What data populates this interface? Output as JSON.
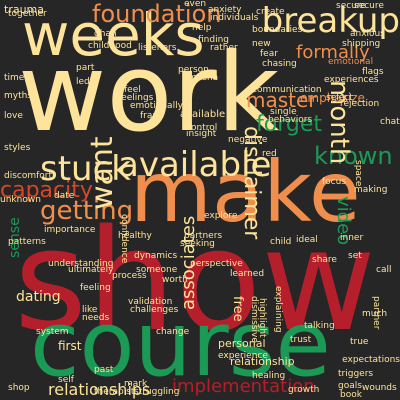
{
  "palette": {
    "background": "#262626",
    "cream": "#fde49a",
    "orange": "#f08f4d",
    "red": "#b51f2b",
    "green": "#1b9a56",
    "dark_orange": "#d2482b"
  },
  "words": [
    {
      "text": "show",
      "color": "red"
    },
    {
      "text": "work",
      "color": "cream"
    },
    {
      "text": "course",
      "color": "green"
    },
    {
      "text": "make",
      "color": "orange"
    },
    {
      "text": "weeks",
      "color": "cream"
    },
    {
      "text": "breakup",
      "color": "cream"
    },
    {
      "text": "foundation",
      "color": "orange"
    },
    {
      "text": "available",
      "color": "cream"
    },
    {
      "text": "stuck",
      "color": "cream"
    },
    {
      "text": "getting",
      "color": "orange"
    },
    {
      "text": "capacity",
      "color": "dark_orange"
    },
    {
      "text": "known",
      "color": "green"
    },
    {
      "text": "month",
      "color": "cream"
    },
    {
      "text": "want",
      "color": "cream"
    },
    {
      "text": "forget",
      "color": "green"
    },
    {
      "text": "master",
      "color": "orange"
    },
    {
      "text": "disclaimer",
      "color": "cream"
    },
    {
      "text": "formally",
      "color": "orange"
    },
    {
      "text": "video",
      "color": "green"
    },
    {
      "text": "implementation",
      "color": "red"
    },
    {
      "text": "relationships",
      "color": "cream"
    },
    {
      "text": "associates",
      "color": "cream"
    },
    {
      "text": "relationship",
      "color": "cream"
    },
    {
      "text": "dating",
      "color": "cream"
    },
    {
      "text": "sense",
      "color": "green"
    },
    {
      "text": "free",
      "color": "cream"
    },
    {
      "text": "first",
      "color": "cream"
    },
    {
      "text": "personal",
      "color": "cream"
    },
    {
      "text": "emphasize",
      "color": "orange"
    },
    {
      "text": "available",
      "color": "cream"
    },
    {
      "text": "trauma",
      "color": "cream"
    },
    {
      "text": "together",
      "color": "cream"
    },
    {
      "text": "childhood",
      "color": "cream"
    },
    {
      "text": "listeners",
      "color": "cream"
    },
    {
      "text": "rather",
      "color": "cream"
    },
    {
      "text": "boundaries",
      "color": "cream"
    },
    {
      "text": "new",
      "color": "cream"
    },
    {
      "text": "shipping",
      "color": "cream"
    },
    {
      "text": "anxious",
      "color": "cream"
    },
    {
      "text": "anxiety",
      "color": "cream"
    },
    {
      "text": "individuals",
      "color": "cream"
    },
    {
      "text": "secure",
      "color": "cream"
    },
    {
      "text": "emotional",
      "color": "orange"
    },
    {
      "text": "flags",
      "color": "cream"
    },
    {
      "text": "communication",
      "color": "cream"
    },
    {
      "text": "experiences",
      "color": "cream"
    },
    {
      "text": "select",
      "color": "cream"
    },
    {
      "text": "rejection",
      "color": "cream"
    },
    {
      "text": "feel",
      "color": "cream"
    },
    {
      "text": "feelings",
      "color": "cream"
    },
    {
      "text": "emotionally",
      "color": "cream"
    },
    {
      "text": "frank",
      "color": "cream"
    },
    {
      "text": "control",
      "color": "cream"
    },
    {
      "text": "insight",
      "color": "cream"
    },
    {
      "text": "single",
      "color": "cream"
    },
    {
      "text": "behaviors",
      "color": "cream"
    },
    {
      "text": "negative",
      "color": "cream"
    },
    {
      "text": "styles",
      "color": "cream"
    },
    {
      "text": "discomfort",
      "color": "cream"
    },
    {
      "text": "unknown",
      "color": "cream"
    },
    {
      "text": "date",
      "color": "cream"
    },
    {
      "text": "importance",
      "color": "cream"
    },
    {
      "text": "dynamics",
      "color": "cream"
    },
    {
      "text": "seeking",
      "color": "cream"
    },
    {
      "text": "partners",
      "color": "cream"
    },
    {
      "text": "explore",
      "color": "cream"
    },
    {
      "text": "understanding",
      "color": "cream"
    },
    {
      "text": "ultimately",
      "color": "cream"
    },
    {
      "text": "feeling",
      "color": "cream"
    },
    {
      "text": "validation",
      "color": "cream"
    },
    {
      "text": "challenges",
      "color": "cream"
    },
    {
      "text": "experience",
      "color": "cream"
    },
    {
      "text": "healing",
      "color": "cream"
    },
    {
      "text": "growth",
      "color": "cream"
    },
    {
      "text": "triggers",
      "color": "cream"
    },
    {
      "text": "expectations",
      "color": "cream"
    },
    {
      "text": "struggling",
      "color": "cream"
    },
    {
      "text": "therapist",
      "color": "cream"
    },
    {
      "text": "shop",
      "color": "cream"
    },
    {
      "text": "self",
      "color": "cream"
    },
    {
      "text": "past",
      "color": "cream"
    },
    {
      "text": "mark",
      "color": "cream"
    },
    {
      "text": "book",
      "color": "cream"
    },
    {
      "text": "wounds",
      "color": "cream"
    },
    {
      "text": "goals",
      "color": "cream"
    },
    {
      "text": "true",
      "color": "cream"
    },
    {
      "text": "trust",
      "color": "cream"
    },
    {
      "text": "part",
      "color": "cream"
    },
    {
      "text": "even",
      "color": "cream"
    },
    {
      "text": "help",
      "color": "cream"
    },
    {
      "text": "finding",
      "color": "cream"
    },
    {
      "text": "create",
      "color": "cream"
    },
    {
      "text": "person",
      "color": "cream"
    },
    {
      "text": "masha",
      "color": "cream"
    },
    {
      "text": "fear",
      "color": "cream"
    },
    {
      "text": "chasing",
      "color": "cream"
    },
    {
      "text": "dhan",
      "color": "cream"
    },
    {
      "text": "time",
      "color": "cream"
    },
    {
      "text": "myths",
      "color": "cream"
    },
    {
      "text": "love",
      "color": "cream"
    },
    {
      "text": "led",
      "color": "cream"
    },
    {
      "text": "much",
      "color": "cream"
    },
    {
      "text": "like",
      "color": "cream"
    },
    {
      "text": "needs",
      "color": "cream"
    },
    {
      "text": "change",
      "color": "cream"
    },
    {
      "text": "focus",
      "color": "cream"
    },
    {
      "text": "making",
      "color": "cream"
    },
    {
      "text": "talking",
      "color": "cream"
    },
    {
      "text": "confidence",
      "color": "cream"
    },
    {
      "text": "patterns",
      "color": "cream"
    },
    {
      "text": "healthy",
      "color": "cream"
    },
    {
      "text": "space",
      "color": "cream"
    },
    {
      "text": "chat",
      "color": "cream"
    },
    {
      "text": "share",
      "color": "cream"
    },
    {
      "text": "set",
      "color": "cream"
    },
    {
      "text": "inner",
      "color": "cream"
    },
    {
      "text": "child",
      "color": "cream"
    },
    {
      "text": "someone",
      "color": "cream"
    },
    {
      "text": "worth",
      "color": "cream"
    },
    {
      "text": "process",
      "color": "cream"
    },
    {
      "text": "perspective",
      "color": "cream"
    },
    {
      "text": "learned",
      "color": "cream"
    },
    {
      "text": "highlight",
      "color": "cream"
    },
    {
      "text": "explaining",
      "color": "cream"
    },
    {
      "text": "partner",
      "color": "cream"
    },
    {
      "text": "call",
      "color": "cream"
    },
    {
      "text": "secure",
      "color": "cream"
    },
    {
      "text": "dismissive",
      "color": "cream"
    },
    {
      "text": "red",
      "color": "cream"
    },
    {
      "text": "ideal",
      "color": "cream"
    },
    {
      "text": "system",
      "color": "cream"
    }
  ]
}
